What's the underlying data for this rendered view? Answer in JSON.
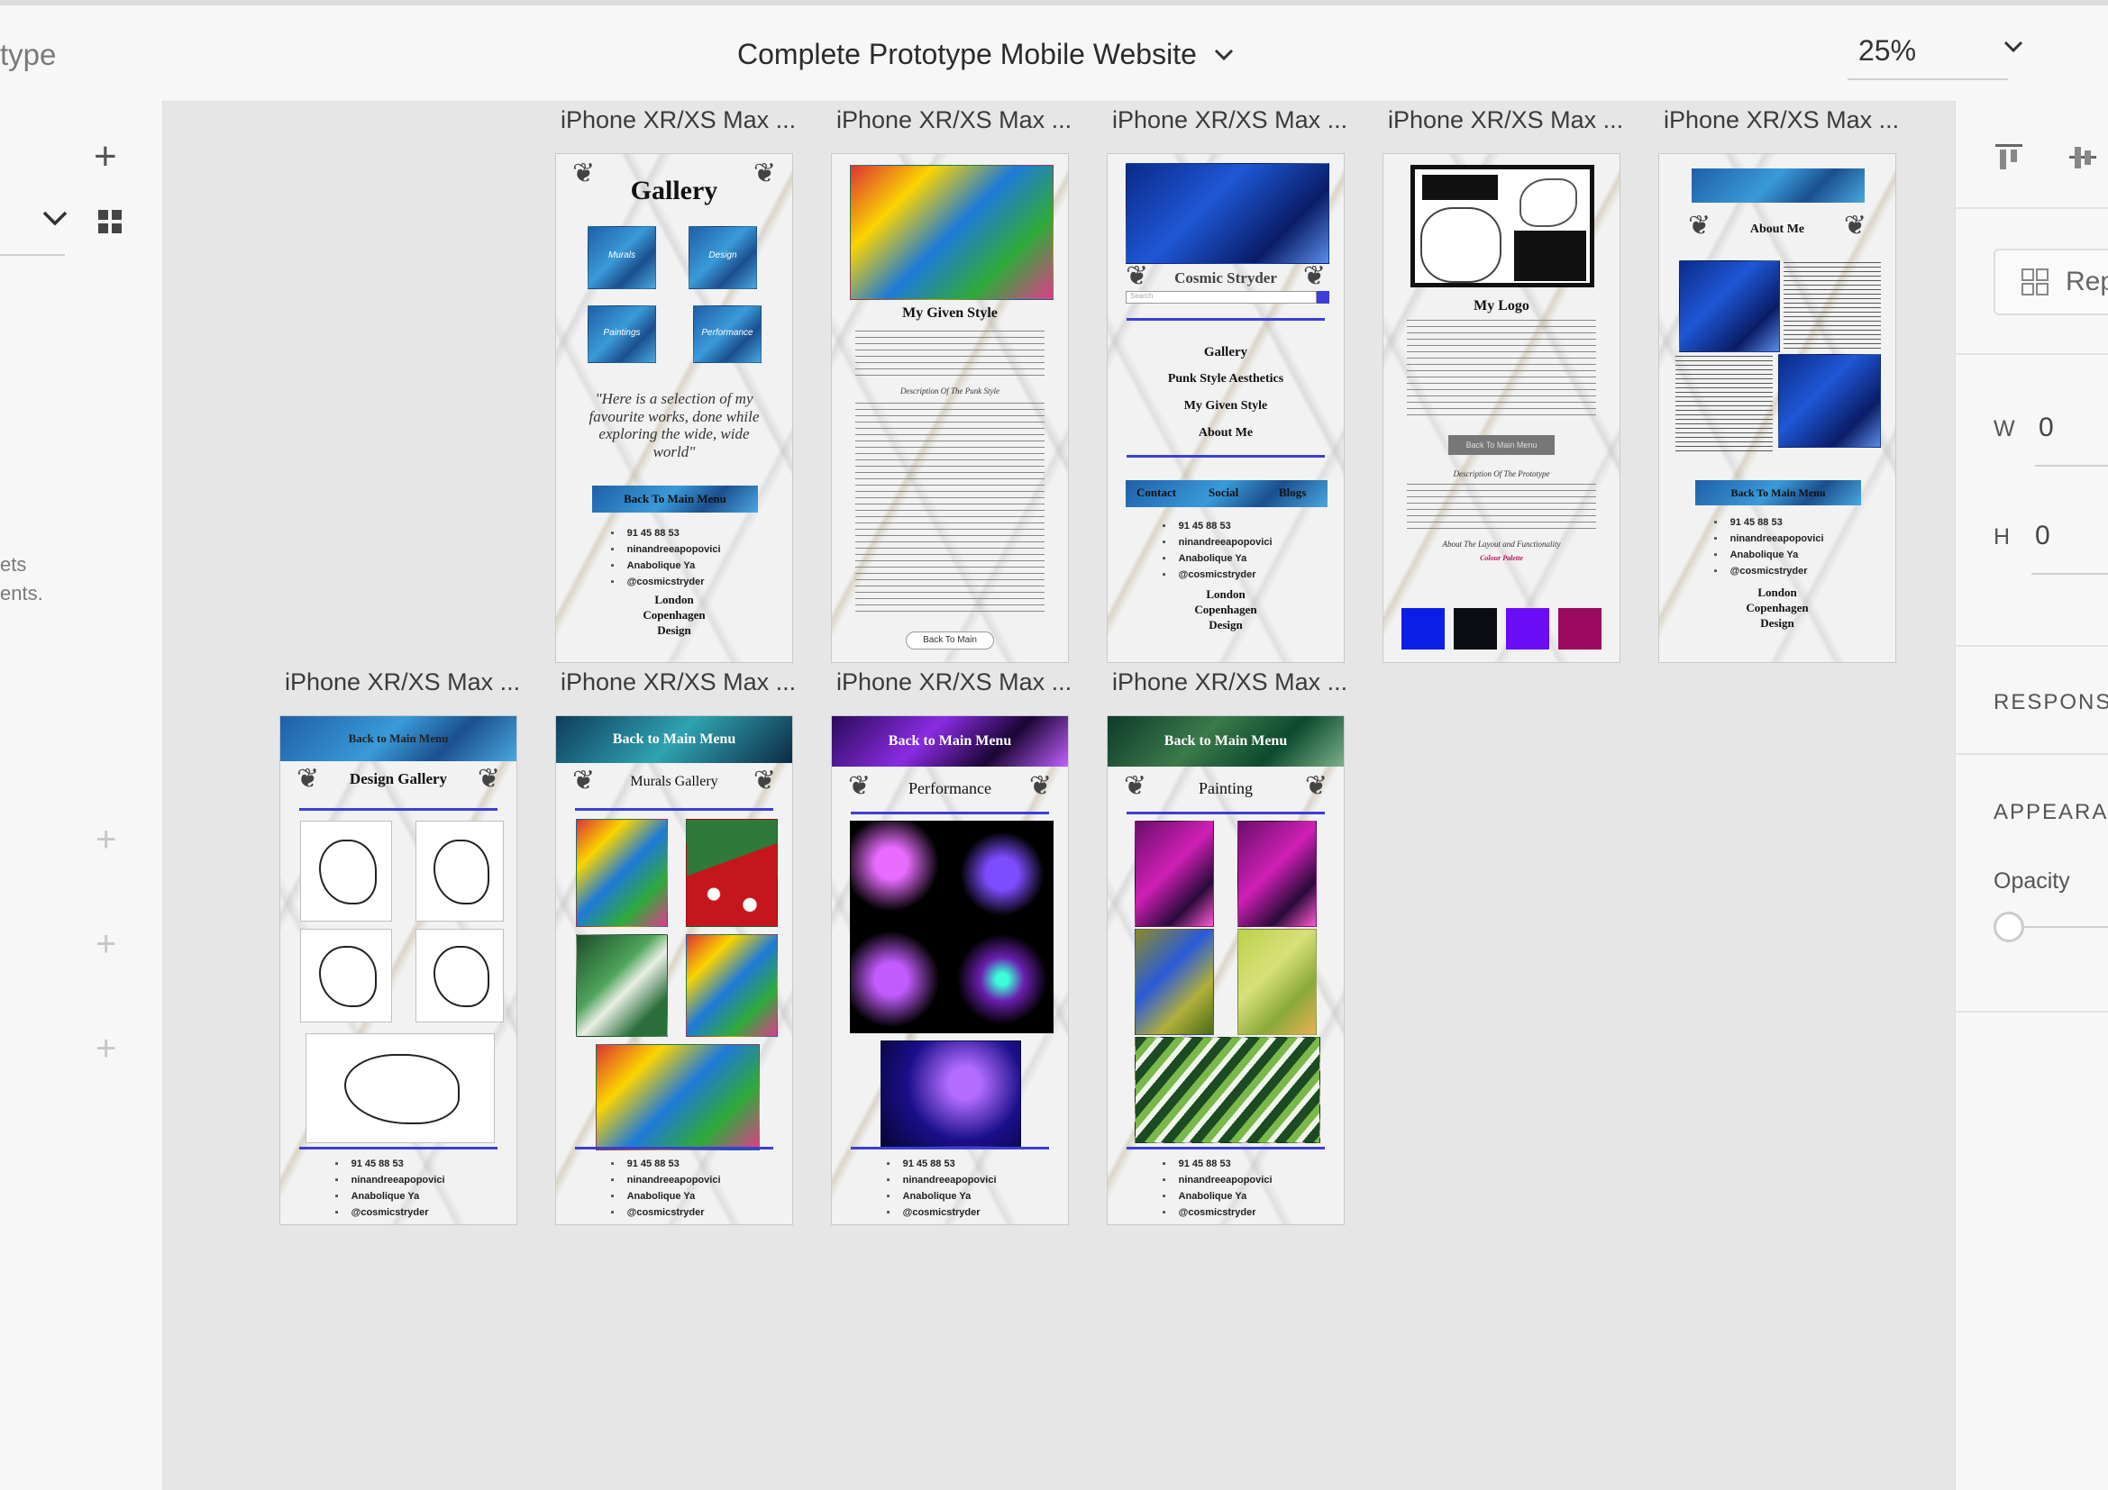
{
  "toolbar": {
    "mode_label": "type",
    "document_title": "Complete Prototype Mobile Website",
    "zoom": "25%"
  },
  "left_panel": {
    "text_line1": "ets",
    "text_line2": "ents."
  },
  "artboards": [
    {
      "label": "iPhone XR/XS Max ...",
      "title": "Gallery",
      "tiles": [
        "Murals",
        "Design",
        "Paintings",
        "Performance"
      ],
      "quote": "\"Here is a selection of my favourite works, done while exploring the wide, wide world\"",
      "button": "Back To Main Menu",
      "contact": [
        "91 45 88 53",
        "ninandreeapopovici",
        "Anabolique Ya",
        "@cosmicstryder"
      ],
      "cities": [
        "London",
        "Copenhagen",
        "Design"
      ]
    },
    {
      "label": "iPhone XR/XS Max ...",
      "title": "My Given Style",
      "heading2": "Description Of The Punk Style",
      "button": "Back To Main"
    },
    {
      "label": "iPhone XR/XS Max ...",
      "brand": "Cosmic Stryder",
      "search_placeholder": "Search",
      "menu": [
        "Gallery",
        "Punk Style Aesthetics",
        "My Given Style",
        "About Me"
      ],
      "footer_tabs": [
        "Contact",
        "Social",
        "Blogs"
      ],
      "contact": [
        "91 45 88 53",
        "ninandreeapopovici",
        "Anabolique Ya",
        "@cosmicstryder"
      ],
      "cities": [
        "London",
        "Copenhagen",
        "Design"
      ]
    },
    {
      "label": "iPhone XR/XS Max ...",
      "title": "My Logo",
      "button": "Back To Main Menu",
      "heading2": "Description Of The Prototype",
      "heading3": "About The Layout and Functionality",
      "palette_label": "Colour Palette",
      "palette": [
        "#0a1ee8",
        "#0b0b14",
        "#6a0cf5",
        "#9a0a5e"
      ]
    },
    {
      "label": "iPhone XR/XS Max ...",
      "title": "About Me",
      "button": "Back To Main Menu",
      "contact": [
        "91 45 88 53",
        "ninandreeapopovici",
        "Anabolique Ya",
        "@cosmicstryder"
      ],
      "cities": [
        "London",
        "Copenhagen",
        "Design"
      ]
    },
    {
      "label": "iPhone XR/XS Max ...",
      "banner": "Back to Main Menu",
      "title": "Design Gallery",
      "contact": [
        "91 45 88 53",
        "ninandreeapopovici",
        "Anabolique Ya",
        "@cosmicstryder"
      ]
    },
    {
      "label": "iPhone XR/XS Max ...",
      "banner": "Back to Main Menu",
      "title": "Murals Gallery",
      "contact": [
        "91 45 88 53",
        "ninandreeapopovici",
        "Anabolique Ya",
        "@cosmicstryder"
      ]
    },
    {
      "label": "iPhone XR/XS Max ...",
      "banner": "Back to Main Menu",
      "title": "Performance",
      "contact": [
        "91 45 88 53",
        "ninandreeapopovici",
        "Anabolique Ya",
        "@cosmicstryder"
      ]
    },
    {
      "label": "iPhone XR/XS Max ...",
      "banner": "Back to Main Menu",
      "title": "Painting",
      "contact": [
        "91 45 88 53",
        "ninandreeapopovici",
        "Anabolique Ya",
        "@cosmicstryder"
      ]
    }
  ],
  "right_panel": {
    "repeat_label": "Rep",
    "w_label": "W",
    "w_value": "0",
    "h_label": "H",
    "h_value": "0",
    "responsive_label": "RESPONSI",
    "appearance_label": "APPEARAN",
    "opacity_label": "Opacity"
  },
  "colors": {
    "accent_blue": "#3b3fd8",
    "canvas_bg": "#e6e6e6",
    "panel_bg": "#f7f7f7"
  }
}
